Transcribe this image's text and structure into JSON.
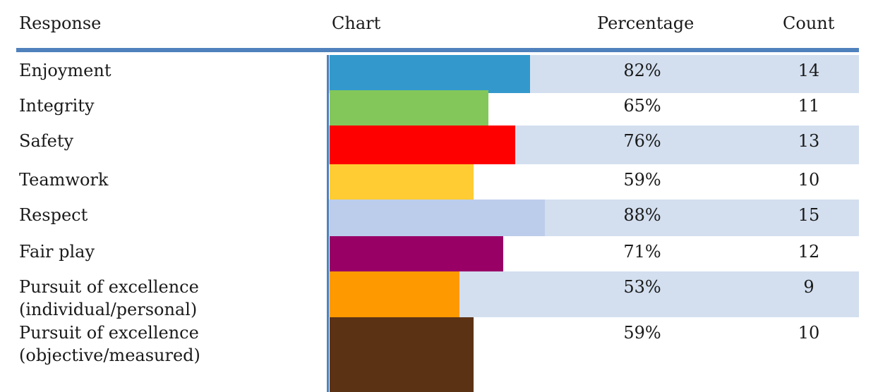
{
  "headers": {
    "response": "Response",
    "chart": "Chart",
    "percentage": "Percentage",
    "count": "Count"
  },
  "chart_data": {
    "type": "bar",
    "orientation": "horizontal",
    "categories": [
      "Enjoyment",
      "Integrity",
      "Safety",
      "Teamwork",
      "Respect",
      "Fair play",
      "Pursuit of excellence\n(individual/personal)",
      "Pursuit of excellence\n(objective/measured)"
    ],
    "percentages": [
      82,
      65,
      76,
      59,
      88,
      71,
      53,
      59
    ],
    "percent_labels": [
      "82%",
      "65%",
      "76%",
      "59%",
      "88%",
      "71%",
      "53%",
      "59%"
    ],
    "counts": [
      "14",
      "11",
      "13",
      "10",
      "15",
      "12",
      "9",
      "10"
    ],
    "bar_colors": [
      "#3399cc",
      "#83c75a",
      "#ff0000",
      "#ffcc33",
      "#bccdeb",
      "#990066",
      "#ff9900",
      "#5c3215"
    ],
    "row_shaded": [
      true,
      false,
      true,
      false,
      true,
      false,
      true,
      false
    ],
    "shade_color": "#d3dfef",
    "rule_color": "#4f81bd"
  }
}
